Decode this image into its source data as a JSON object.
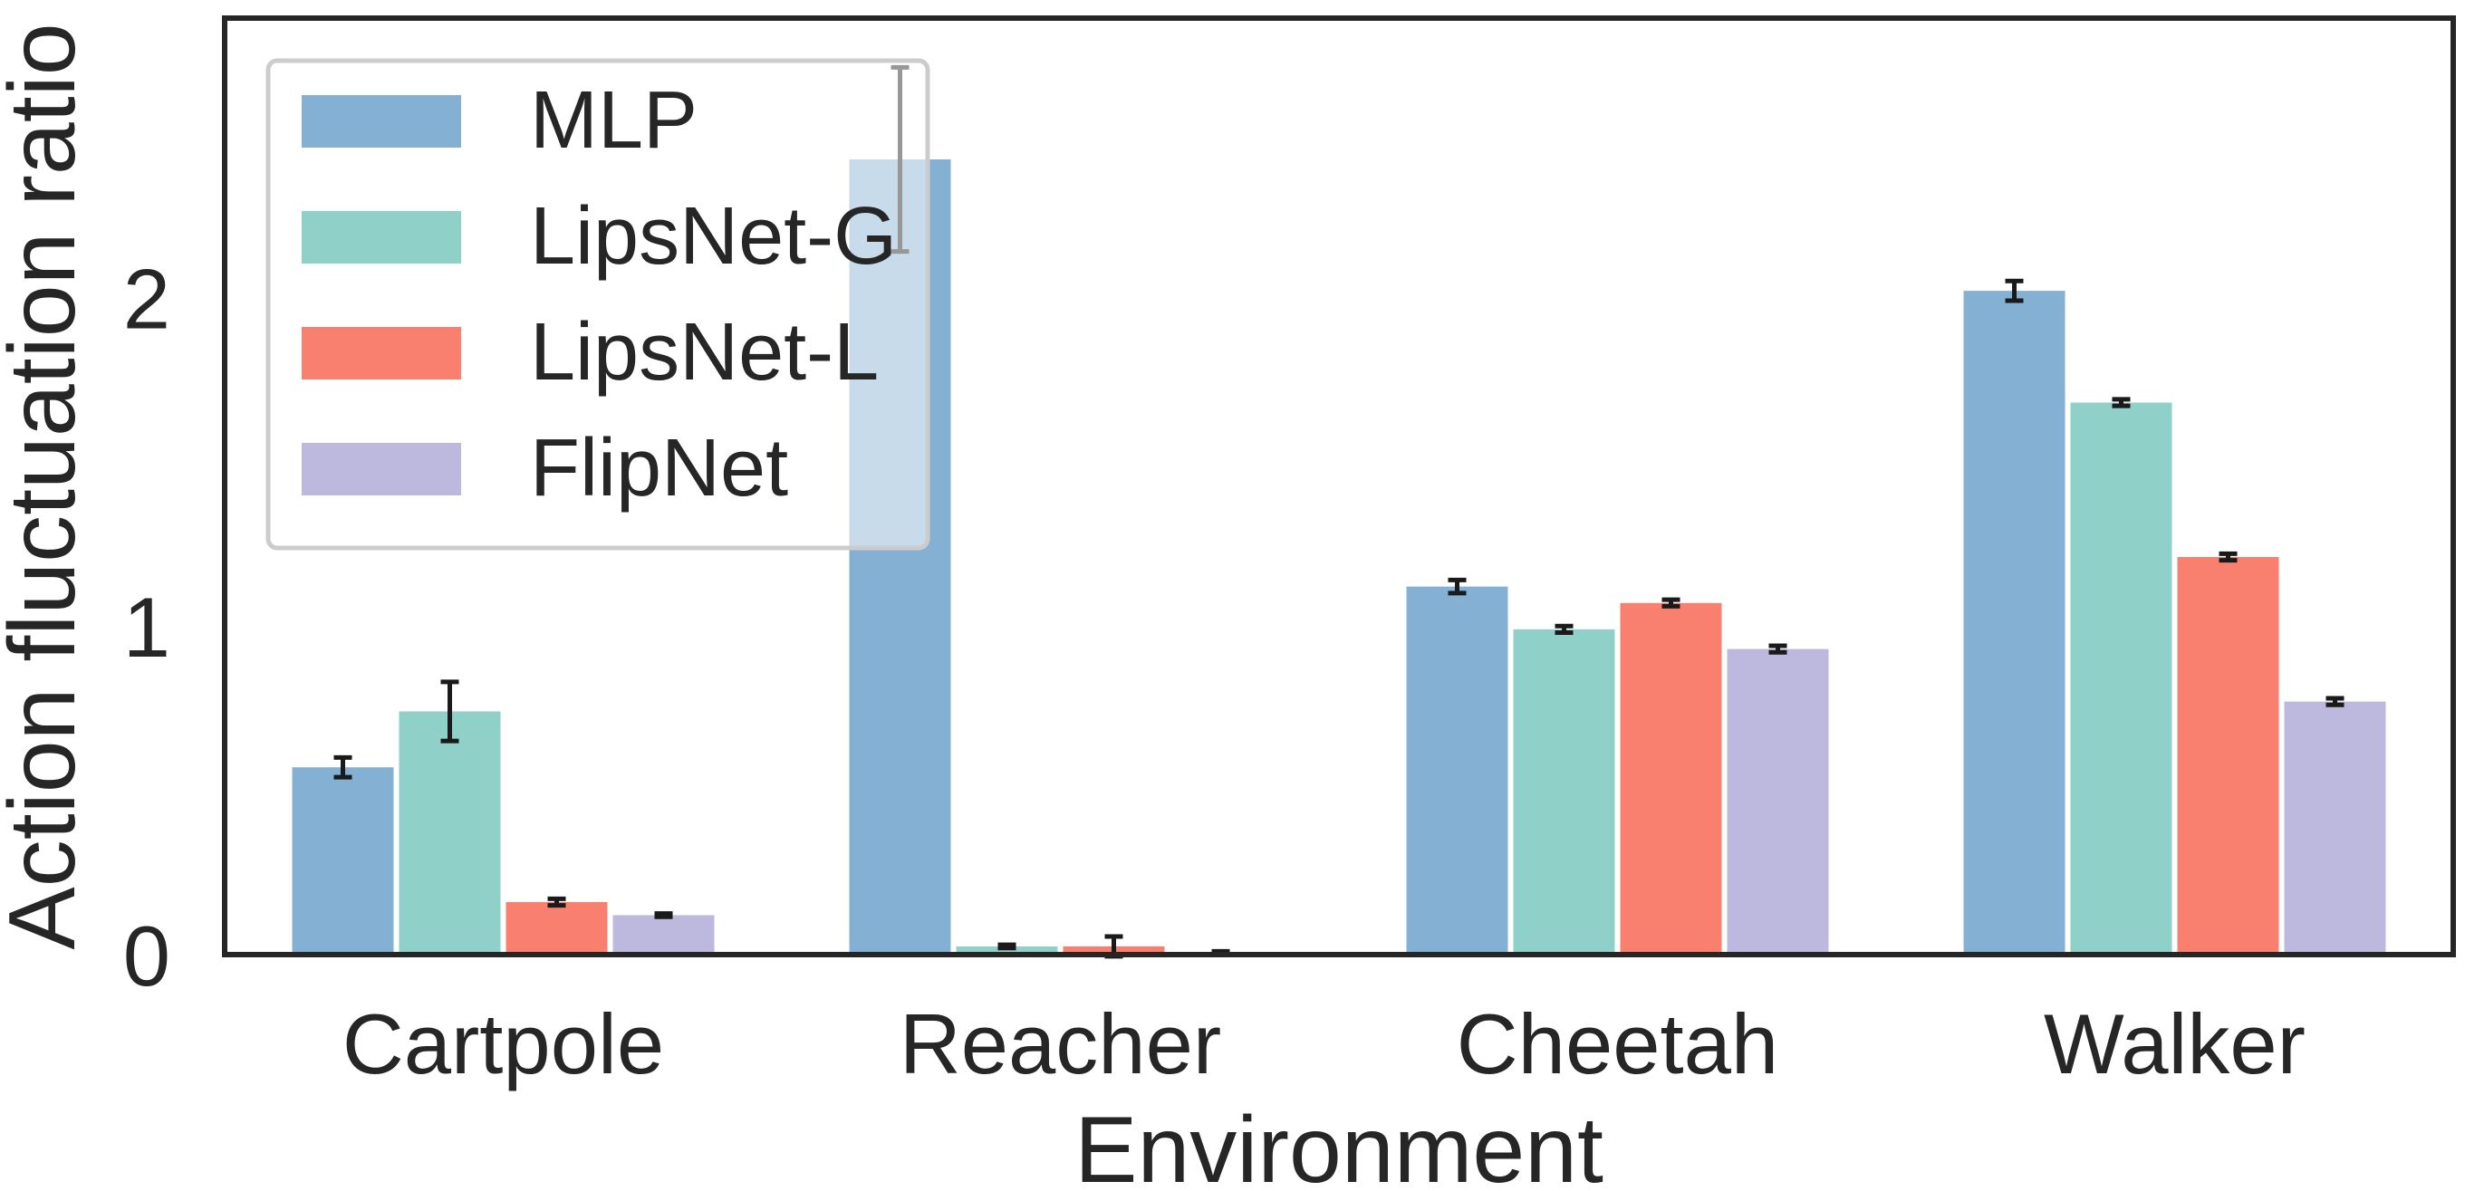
{
  "chart_data": {
    "type": "bar",
    "xlabel": "Environment",
    "ylabel": "Action fluctuation ratio",
    "ylim": [
      0,
      2.85
    ],
    "yticks": [
      0,
      1,
      2
    ],
    "categories": [
      "Cartpole",
      "Reacher",
      "Cheetah",
      "Walker"
    ],
    "grid": false,
    "legend_position": "top-left",
    "series": [
      {
        "name": "MLP",
        "color": "#84b0d3",
        "values": [
          0.57,
          2.42,
          1.12,
          2.02
        ],
        "errors": [
          0.03,
          0.28,
          0.02,
          0.03
        ]
      },
      {
        "name": "LipsNet-G",
        "color": "#8fd0c8",
        "values": [
          0.74,
          0.025,
          0.99,
          1.68
        ],
        "errors": [
          0.09,
          0.005,
          0.01,
          0.01
        ]
      },
      {
        "name": "LipsNet-L",
        "color": "#f9806f",
        "values": [
          0.16,
          0.025,
          1.07,
          1.21
        ],
        "errors": [
          0.01,
          0.03,
          0.01,
          0.01
        ]
      },
      {
        "name": "FlipNet",
        "color": "#bdb8dd",
        "values": [
          0.12,
          0.005,
          0.93,
          0.77
        ],
        "errors": [
          0.005,
          0.005,
          0.01,
          0.01
        ]
      }
    ]
  }
}
